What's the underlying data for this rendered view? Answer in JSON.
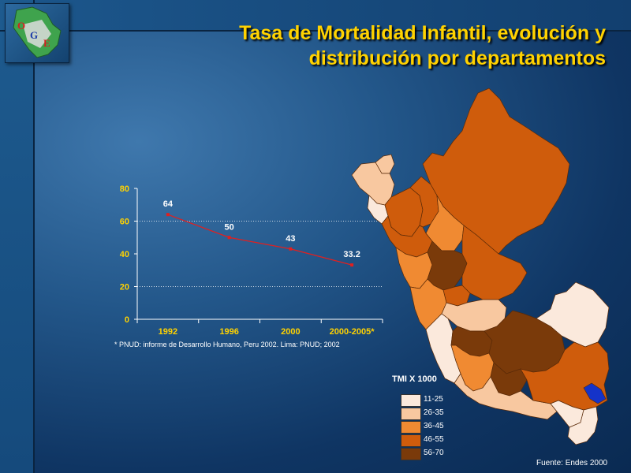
{
  "title": "Tasa de Mortalidad Infantil, evolución y distribución por departamentos",
  "logo": {
    "letters": [
      "O",
      "G",
      "E"
    ]
  },
  "footnote": "* PNUD: informe de Desarrollo Humano, Peru 2002. Lima: PNUD; 2002",
  "source": "Fuente: Endes 2000",
  "chart_data": {
    "type": "line",
    "categories": [
      "1992",
      "1996",
      "2000",
      "2000-2005*"
    ],
    "values": [
      64,
      50,
      43,
      33.2
    ],
    "data_labels": [
      "64",
      "50",
      "43",
      "33.2"
    ],
    "yticks": [
      "0",
      "20",
      "40",
      "60",
      "80"
    ],
    "ylim": [
      0,
      80
    ],
    "gridlines": [
      20,
      60
    ],
    "series_color": "#e02020"
  },
  "map_legend": {
    "title": "TMI X 1000",
    "colors": [
      "#fbe9dc",
      "#f8c8a0",
      "#f08a32",
      "#cf5c0c",
      "#7a3a0a"
    ],
    "labels": [
      "11-25",
      "26-35",
      "36-45",
      "46-55",
      "56-70"
    ]
  },
  "map_highlight_color": "#1533c9"
}
